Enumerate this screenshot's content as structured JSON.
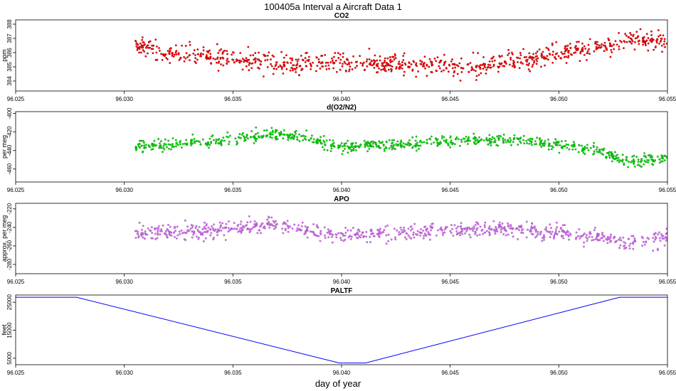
{
  "figure_title": "100405a   Interval a Aircraft Data 1",
  "x_label": "day of year",
  "colors": {
    "co2": "#ff0000",
    "o2n2": "#00e000",
    "apo": "#e070ff",
    "paltf": "#0000ff"
  },
  "chart_data": [
    {
      "type": "scatter",
      "title": "CO2",
      "ylabel": "ppm",
      "xlim": [
        96.025,
        96.055
      ],
      "ylim": [
        383.3,
        388.3
      ],
      "x_ticks": [
        "96.025",
        "96.030",
        "96.035",
        "96.040",
        "96.045",
        "96.050",
        "96.055"
      ],
      "y_ticks": [
        "384",
        "385",
        "386",
        "387",
        "388"
      ],
      "y_tick_values": [
        384,
        385,
        386,
        387,
        388
      ],
      "data_range_x": [
        96.0305,
        96.055
      ],
      "trend": [
        [
          96.0305,
          386.6
        ],
        [
          96.032,
          385.9
        ],
        [
          96.035,
          385.6
        ],
        [
          96.038,
          385.1
        ],
        [
          96.04,
          385.3
        ],
        [
          96.043,
          385.1
        ],
        [
          96.046,
          385.0
        ],
        [
          96.048,
          385.4
        ],
        [
          96.05,
          386.0
        ],
        [
          96.052,
          386.4
        ],
        [
          96.0535,
          386.9
        ],
        [
          96.055,
          386.8
        ]
      ],
      "noise": 0.55,
      "n_points": 900
    },
    {
      "type": "scatter",
      "title": "d(O2/N2)",
      "ylabel": "per meg",
      "xlim": [
        96.025,
        96.055
      ],
      "ylim": [
        -474,
        -398
      ],
      "x_ticks": [
        "96.025",
        "96.030",
        "96.035",
        "96.040",
        "96.045",
        "96.050",
        "96.055"
      ],
      "y_ticks": [
        "-400",
        "-420",
        "-440",
        "-460"
      ],
      "y_tick_values": [
        -400,
        -420,
        -440,
        -460
      ],
      "data_range_x": [
        96.0305,
        96.055
      ],
      "trend": [
        [
          96.0305,
          -436
        ],
        [
          96.032,
          -434
        ],
        [
          96.035,
          -428
        ],
        [
          96.037,
          -422
        ],
        [
          96.039,
          -430
        ],
        [
          96.04,
          -436
        ],
        [
          96.043,
          -433
        ],
        [
          96.046,
          -428
        ],
        [
          96.048,
          -428
        ],
        [
          96.05,
          -434
        ],
        [
          96.052,
          -440
        ],
        [
          96.053,
          -452
        ],
        [
          96.055,
          -448
        ]
      ],
      "noise": 5,
      "n_points": 800
    },
    {
      "type": "scatter",
      "title": "APO",
      "ylabel": "approx. per meg",
      "xlim": [
        96.025,
        96.055
      ],
      "ylim": [
        -290,
        -214
      ],
      "x_ticks": [
        "96.025",
        "96.030",
        "96.035",
        "96.040",
        "96.045",
        "96.050",
        "96.055"
      ],
      "y_ticks": [
        "-220",
        "-240",
        "-260",
        "-280"
      ],
      "y_tick_values": [
        -220,
        -240,
        -260,
        -280
      ],
      "data_range_x": [
        96.0305,
        96.055
      ],
      "trend": [
        [
          96.0305,
          -246
        ],
        [
          96.033,
          -245
        ],
        [
          96.035,
          -240
        ],
        [
          96.037,
          -238
        ],
        [
          96.04,
          -248
        ],
        [
          96.043,
          -246
        ],
        [
          96.046,
          -243
        ],
        [
          96.048,
          -241
        ],
        [
          96.05,
          -246
        ],
        [
          96.052,
          -251
        ],
        [
          96.053,
          -256
        ],
        [
          96.055,
          -252
        ]
      ],
      "noise": 7,
      "n_points": 800
    },
    {
      "type": "line",
      "title": "PALTF",
      "ylabel": "feet",
      "xlim": [
        96.025,
        96.055
      ],
      "ylim": [
        2700,
        27600
      ],
      "x_ticks": [
        "96.025",
        "96.030",
        "96.035",
        "96.040",
        "96.045",
        "96.050",
        "96.055"
      ],
      "y_ticks": [
        "5000",
        "15000",
        "25000"
      ],
      "y_tick_values": [
        5000,
        15000,
        25000
      ],
      "x": [
        96.025,
        96.0278,
        96.0399,
        96.0411,
        96.0528,
        96.055
      ],
      "y": [
        26800,
        26800,
        3300,
        3300,
        26800,
        26800
      ]
    }
  ]
}
